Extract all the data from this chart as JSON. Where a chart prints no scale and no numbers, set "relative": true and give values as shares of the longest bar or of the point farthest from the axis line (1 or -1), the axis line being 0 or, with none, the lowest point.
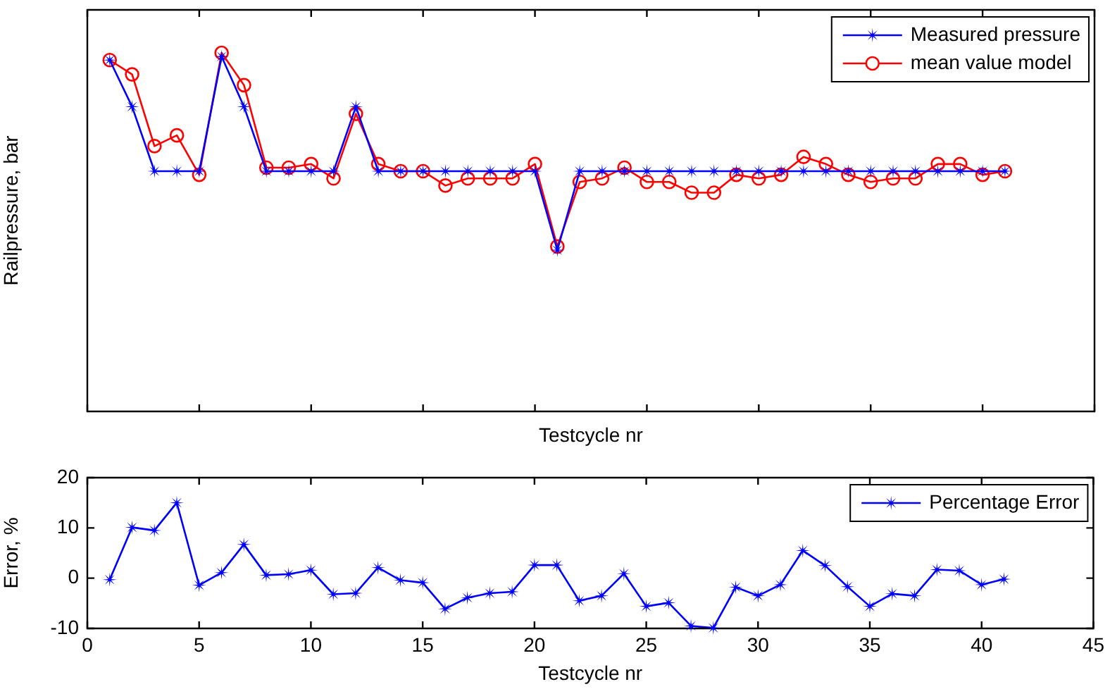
{
  "chart_data": [
    {
      "type": "line",
      "xlabel": "Testcycle nr",
      "ylabel": "Railpressure, bar",
      "relative": true,
      "x": [
        1,
        2,
        3,
        4,
        5,
        6,
        7,
        8,
        9,
        10,
        11,
        12,
        13,
        14,
        15,
        16,
        17,
        18,
        19,
        20,
        21,
        22,
        23,
        24,
        25,
        26,
        27,
        28,
        29,
        30,
        31,
        32,
        33,
        34,
        35,
        36,
        37,
        38,
        39,
        40,
        41
      ],
      "xlim": [
        0,
        45
      ],
      "xticks": [
        0,
        5,
        10,
        15,
        20,
        25,
        30,
        35,
        40,
        45
      ],
      "tick_labels": false,
      "legend": "top right",
      "grid": false,
      "series": [
        {
          "name": "Measured pressure",
          "color": "#0000ff",
          "marker": "star",
          "values": [
            0.98,
            0.85,
            0.67,
            0.67,
            0.67,
            0.99,
            0.85,
            0.67,
            0.67,
            0.67,
            0.67,
            0.85,
            0.67,
            0.67,
            0.67,
            0.67,
            0.67,
            0.67,
            0.67,
            0.67,
            0.45,
            0.67,
            0.67,
            0.67,
            0.67,
            0.67,
            0.67,
            0.67,
            0.67,
            0.67,
            0.67,
            0.67,
            0.67,
            0.67,
            0.67,
            0.67,
            0.67,
            0.67,
            0.67,
            0.67,
            0.67
          ]
        },
        {
          "name": "mean value model",
          "color": "#ff0000",
          "marker": "circle",
          "values": [
            0.98,
            0.94,
            0.74,
            0.77,
            0.66,
            1,
            0.91,
            0.68,
            0.68,
            0.69,
            0.65,
            0.83,
            0.69,
            0.67,
            0.67,
            0.63,
            0.65,
            0.65,
            0.65,
            0.69,
            0.46,
            0.64,
            0.65,
            0.68,
            0.64,
            0.64,
            0.61,
            0.61,
            0.66,
            0.65,
            0.66,
            0.71,
            0.69,
            0.66,
            0.64,
            0.65,
            0.65,
            0.69,
            0.69,
            0.66,
            0.67
          ]
        }
      ]
    },
    {
      "type": "line",
      "xlabel": "Testcycle nr",
      "ylabel": "Error, %",
      "x": [
        1,
        2,
        3,
        4,
        5,
        6,
        7,
        8,
        9,
        10,
        11,
        12,
        13,
        14,
        15,
        16,
        17,
        18,
        19,
        20,
        21,
        22,
        23,
        24,
        25,
        26,
        27,
        28,
        29,
        30,
        31,
        32,
        33,
        34,
        35,
        36,
        37,
        38,
        39,
        40,
        41
      ],
      "xlim": [
        0,
        45
      ],
      "xticks": [
        0,
        5,
        10,
        15,
        20,
        25,
        30,
        35,
        40,
        45
      ],
      "ylim": [
        -10,
        20
      ],
      "yticks": [
        -10,
        0,
        10,
        20
      ],
      "legend": "top right",
      "grid": false,
      "series": [
        {
          "name": "Percentage Error",
          "color": "#0000ff",
          "marker": "star",
          "values": [
            -0.3,
            10.1,
            9.5,
            15.0,
            -1.4,
            1.1,
            6.7,
            0.6,
            0.8,
            1.6,
            -3.2,
            -3.0,
            2.1,
            -0.4,
            -0.9,
            -6.1,
            -3.9,
            -3.0,
            -2.7,
            2.6,
            2.6,
            -4.5,
            -3.5,
            0.9,
            -5.6,
            -4.9,
            -9.5,
            -9.9,
            -1.8,
            -3.5,
            -1.3,
            5.5,
            2.5,
            -1.7,
            -5.6,
            -3.1,
            -3.5,
            1.7,
            1.5,
            -1.3,
            -0.2
          ]
        }
      ]
    }
  ]
}
